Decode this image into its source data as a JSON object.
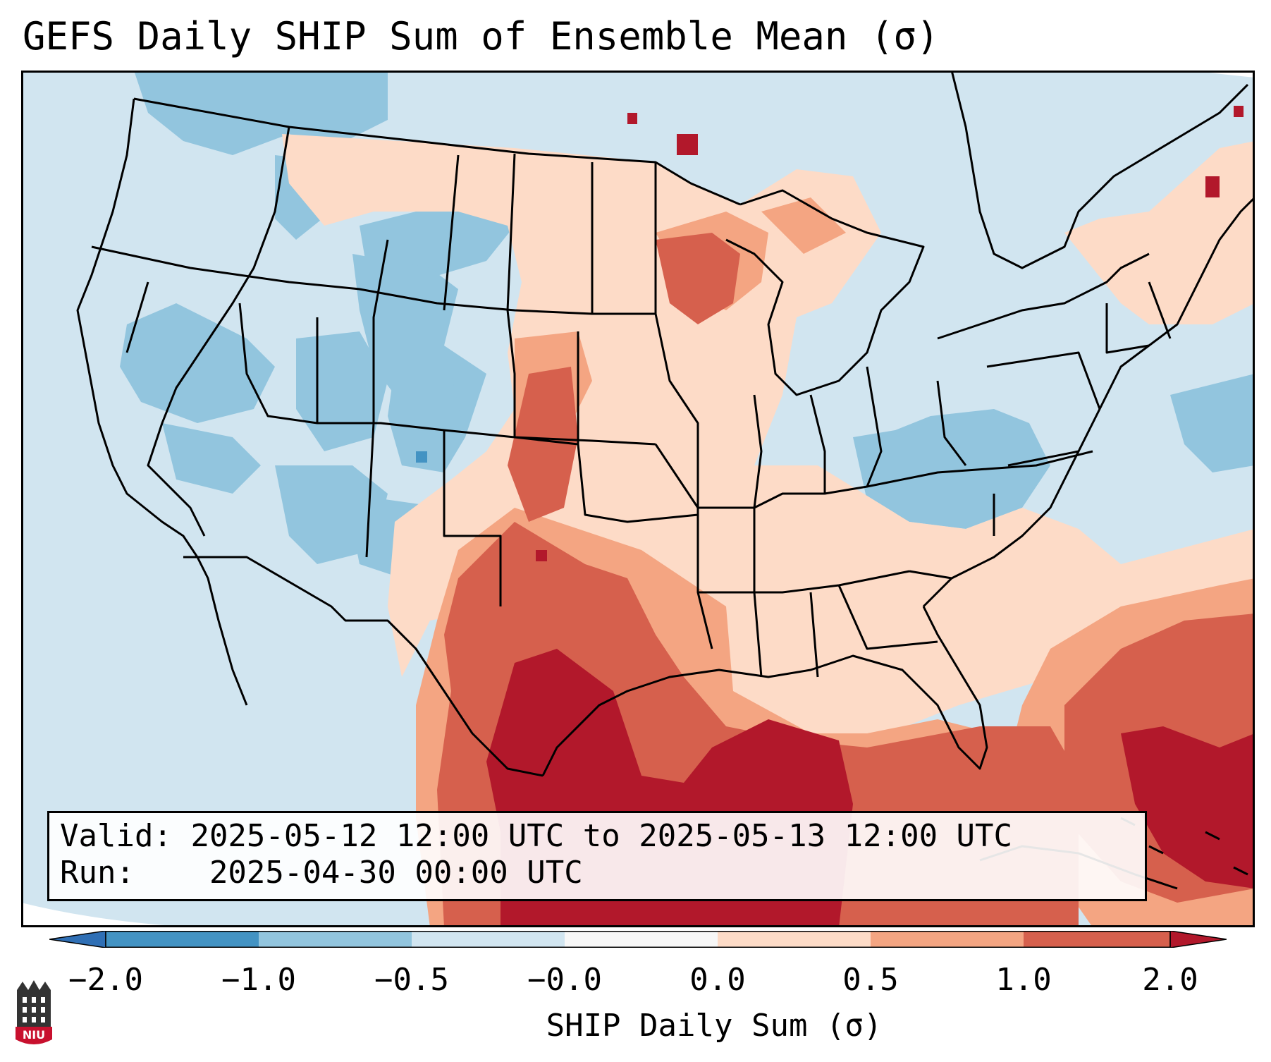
{
  "title": "GEFS Daily SHIP Sum of Ensemble Mean (σ)",
  "legend": {
    "valid_label": "Valid:",
    "valid_value": "2025-05-12 12:00 UTC to 2025-05-13 12:00 UTC",
    "run_label": "Run:",
    "run_value": "2025-04-30 00:00 UTC"
  },
  "colorbar": {
    "label": "SHIP Daily Sum (σ)",
    "ticks": [
      "−2.0",
      "−1.0",
      "−0.5",
      "−0.0",
      "0.0",
      "0.5",
      "1.0",
      "2.0"
    ],
    "colors": {
      "lt_neg2": "#2f6fb5",
      "neg2_neg1": "#4393c3",
      "neg1_neg05": "#92c5de",
      "neg05_0": "#d1e5f0",
      "zero": "#f7f7f7",
      "0_05": "#fddbc7",
      "05_1": "#f4a582",
      "1_2": "#d6604d",
      "gt_2": "#b2182b"
    }
  },
  "logo": {
    "text": "NIU"
  },
  "map": {
    "region": "CONUS",
    "field_description_colors": {
      "ocean_land_base": "#d1e5f0"
    }
  }
}
